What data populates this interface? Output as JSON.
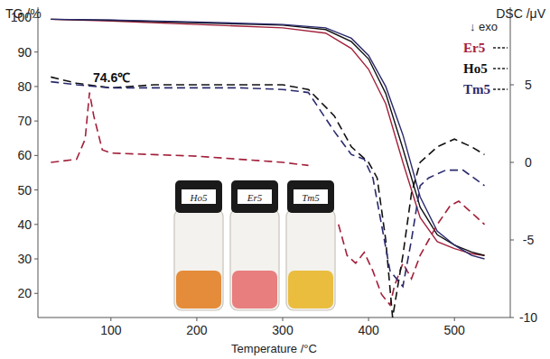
{
  "chart_data": {
    "type": "line",
    "x_label": "Temperature /°C",
    "y_label": "TG /%",
    "y2_label": "DSC /μV",
    "legend_title": "↓ exo",
    "xlim": [
      15,
      565
    ],
    "xticks": [
      100,
      200,
      300,
      400,
      500
    ],
    "ylim": [
      13,
      103
    ],
    "yticks": [
      20,
      30,
      40,
      50,
      60,
      70,
      80,
      90,
      100
    ],
    "y2lim": [
      -10,
      10
    ],
    "y2ticks": [
      5,
      0,
      -5,
      -10
    ],
    "legend": "upper right",
    "annotations": [
      {
        "text": "74.6℃"
      }
    ],
    "inset": {
      "labels": [
        "Ho5",
        "Er5",
        "Tm5"
      ]
    },
    "series": [
      {
        "name": "Er5",
        "color": "#a3203a",
        "type": "line",
        "line_style": "solid",
        "x": [
          30,
          100,
          200,
          300,
          350,
          380,
          400,
          420,
          440,
          460,
          480,
          500,
          520,
          535
        ],
        "values": [
          99.5,
          99,
          98,
          97,
          95.5,
          91,
          85,
          75,
          58,
          42,
          35,
          33,
          31.5,
          31
        ]
      },
      {
        "name": "Ho5",
        "color": "#111111",
        "type": "line",
        "line_style": "solid",
        "x": [
          30,
          100,
          200,
          300,
          350,
          380,
          400,
          420,
          440,
          460,
          480,
          500,
          520,
          535
        ],
        "values": [
          99.5,
          99.2,
          98.5,
          97.8,
          96.5,
          93,
          88,
          78,
          62,
          45,
          37,
          34,
          32,
          31
        ]
      },
      {
        "name": "Tm5",
        "color": "#2a2a6e",
        "type": "line",
        "line_style": "solid",
        "x": [
          30,
          100,
          200,
          300,
          350,
          380,
          400,
          420,
          440,
          460,
          480,
          500,
          520,
          535
        ],
        "values": [
          99.5,
          99.3,
          98.7,
          98,
          97,
          94,
          89,
          80,
          66,
          48,
          38,
          34,
          31,
          30
        ]
      },
      {
        "name": "Er5",
        "color": "#a3203a",
        "type": "line",
        "line_style": "dashed",
        "axis": "y2",
        "x": [
          30,
          60,
          70,
          75,
          80,
          90,
          100,
          150,
          200,
          250,
          300,
          330,
          345,
          365,
          375,
          385,
          395,
          405,
          415,
          425,
          430,
          440,
          450,
          460,
          470,
          480,
          495,
          505,
          515,
          525,
          535
        ],
        "values": [
          0,
          0.2,
          1.5,
          4.5,
          3,
          0.8,
          0.6,
          0.5,
          0.4,
          0.2,
          0,
          -0.2,
          null,
          -4,
          -6,
          -6.5,
          -5.8,
          -7,
          -8.5,
          -9.2,
          -8,
          -6.5,
          -7.5,
          -6,
          -5,
          -4,
          -2.8,
          -2.5,
          -3,
          -3.5,
          -4
        ]
      },
      {
        "name": "Ho5",
        "color": "#111111",
        "type": "line",
        "line_style": "dashed",
        "axis": "y2",
        "x": [
          30,
          60,
          100,
          150,
          200,
          250,
          300,
          330,
          360,
          380,
          390,
          400,
          410,
          420,
          428,
          440,
          450,
          460,
          480,
          500,
          520,
          535
        ],
        "values": [
          5.5,
          5.1,
          4.8,
          5,
          5,
          5,
          5,
          4.7,
          3,
          1,
          0.5,
          0,
          -1,
          -5,
          -10,
          -6,
          -2,
          0,
          1,
          1.5,
          1,
          0.5
        ]
      },
      {
        "name": "Tm5",
        "color": "#2a2a6e",
        "type": "line",
        "line_style": "dashed",
        "axis": "y2",
        "x": [
          30,
          60,
          100,
          150,
          200,
          250,
          300,
          330,
          360,
          380,
          395,
          405,
          415,
          425,
          440,
          450,
          460,
          470,
          490,
          510,
          535
        ],
        "values": [
          5.2,
          5,
          4.8,
          4.8,
          4.8,
          4.8,
          4.7,
          4.5,
          2,
          0.5,
          0.2,
          -1,
          -4,
          -7,
          -8,
          -5,
          -1.5,
          -1,
          -0.5,
          -0.5,
          -1.5
        ]
      }
    ]
  }
}
